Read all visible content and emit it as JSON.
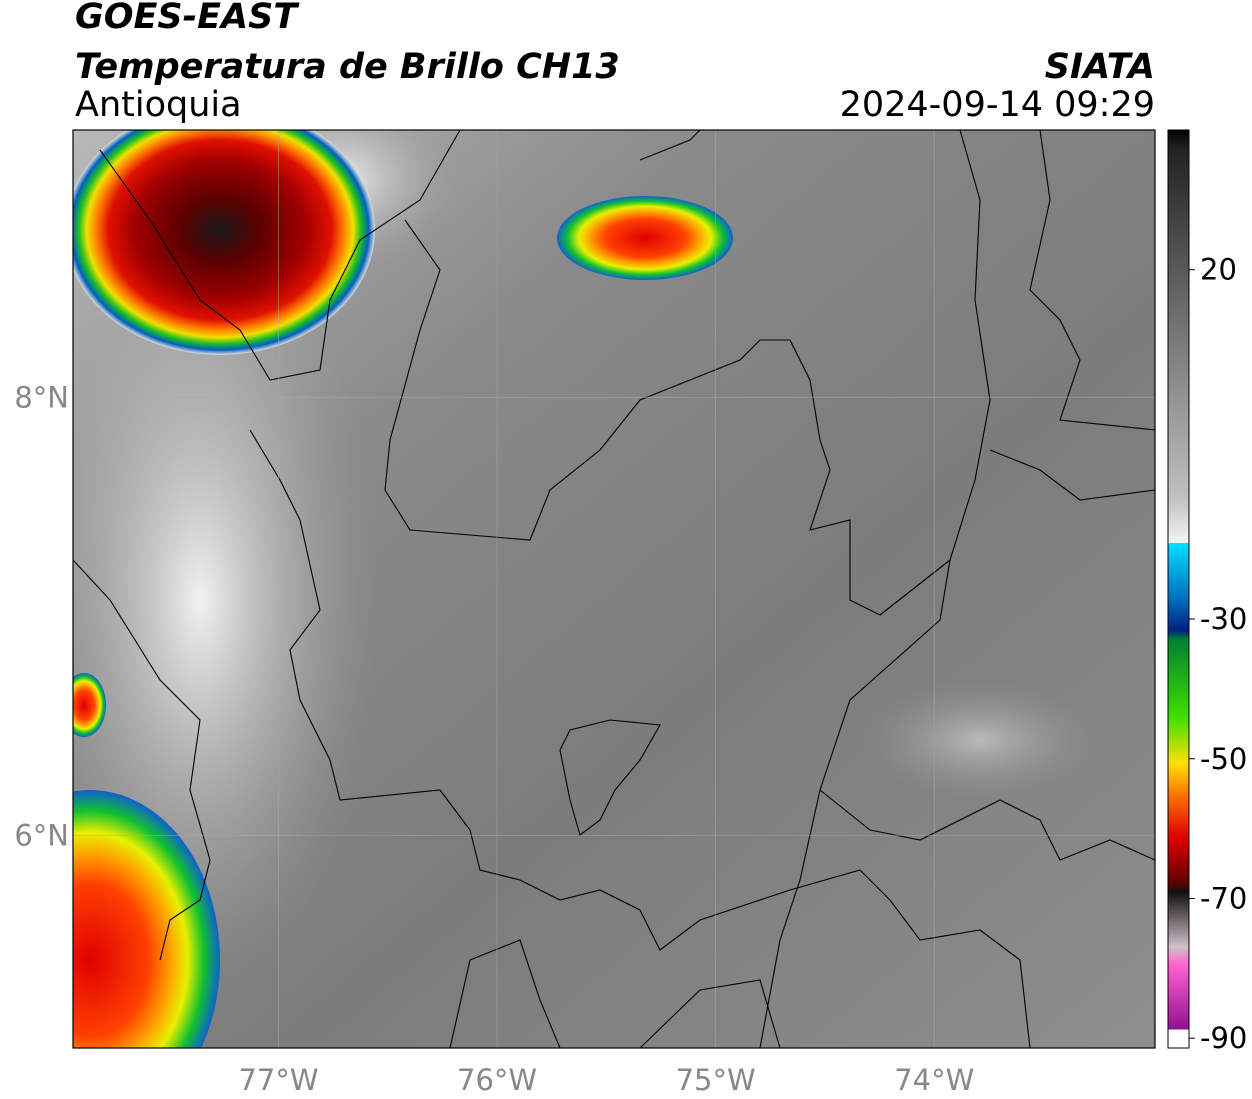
{
  "header": {
    "title": "GOES-EAST",
    "subtitle": "Temperatura de Brillo CH13",
    "region": "Antioquia",
    "source": "SIATA",
    "timestamp": "2024-09-14 09:29"
  },
  "map": {
    "xlim": [
      -77.94,
      -72.99
    ],
    "ylim": [
      5.03,
      9.22
    ],
    "xticks": [
      {
        "value": -77,
        "label": "77°W"
      },
      {
        "value": -76,
        "label": "76°W"
      },
      {
        "value": -75,
        "label": "75°W"
      },
      {
        "value": -74,
        "label": "74°W"
      }
    ],
    "yticks": [
      {
        "value": 6,
        "label": "6°N"
      },
      {
        "value": 8,
        "label": "8°N"
      }
    ]
  },
  "colorbar": {
    "lim": [
      -91.4,
      40
    ],
    "ticks": [
      20,
      -30,
      -50,
      -70,
      -90
    ]
  }
}
